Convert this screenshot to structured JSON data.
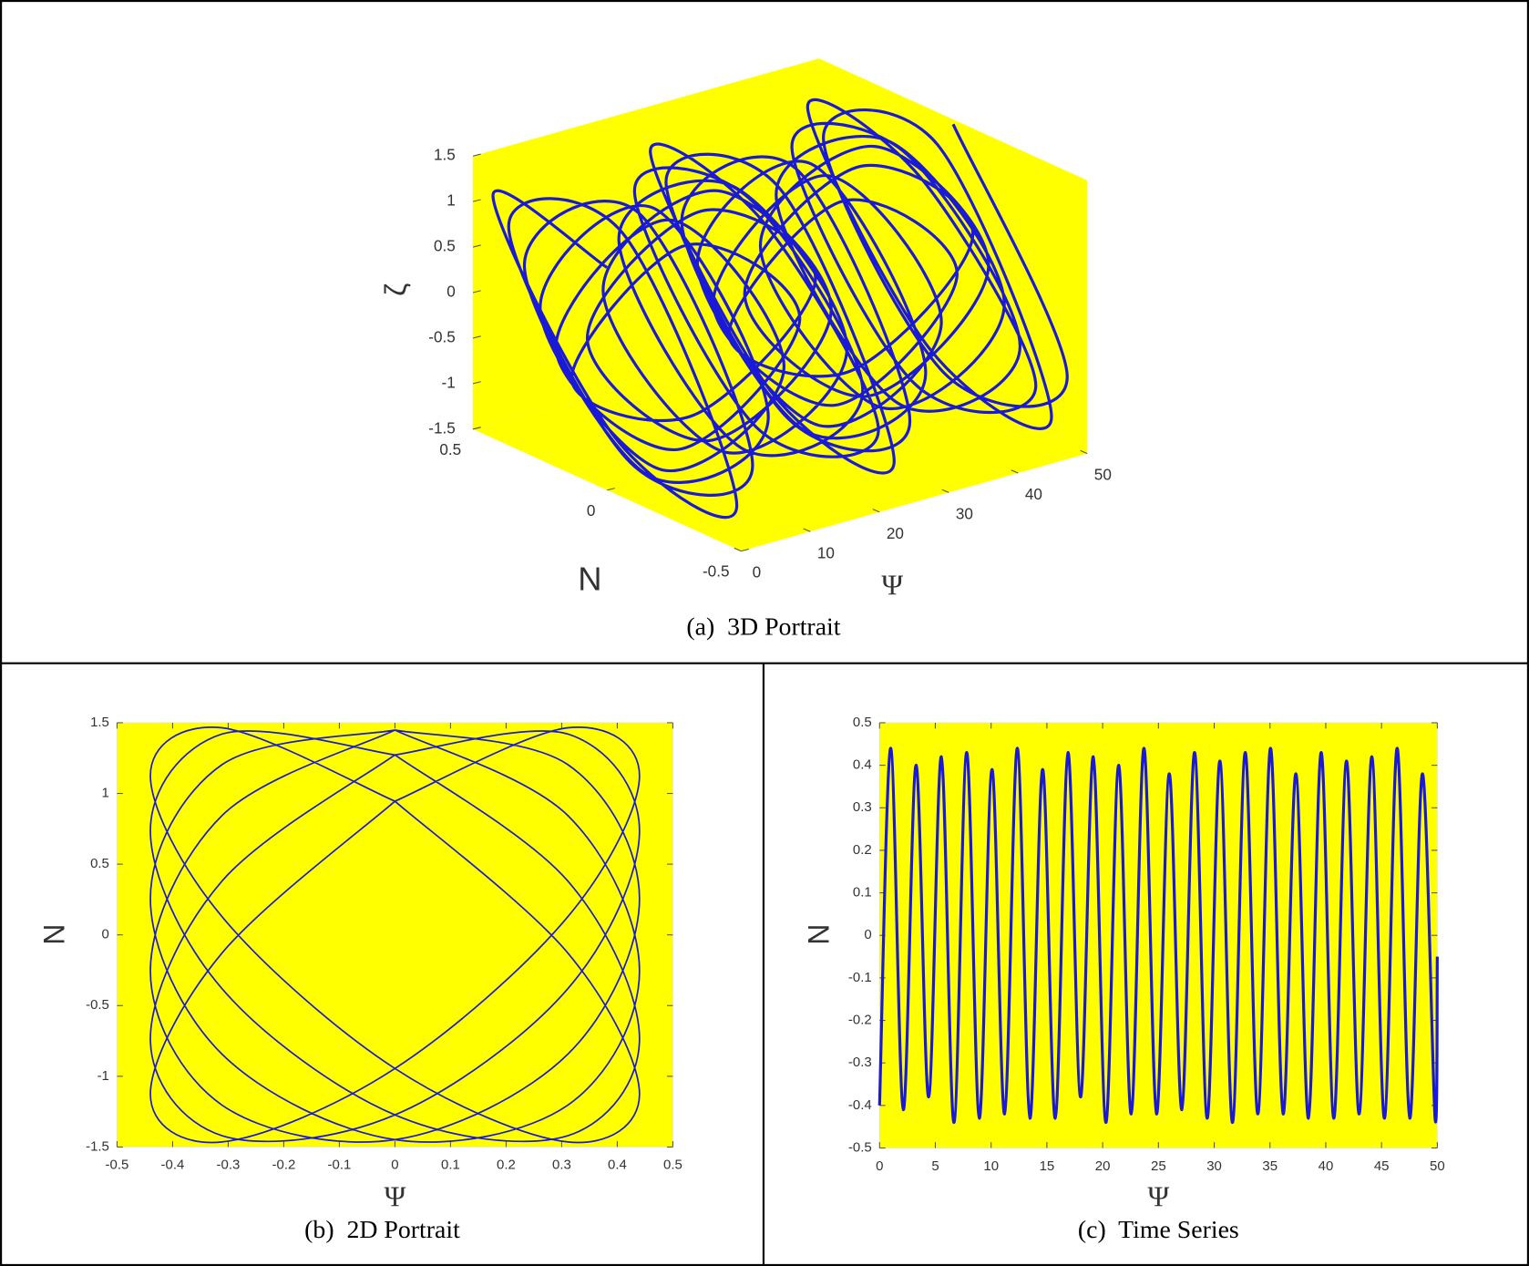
{
  "chart_data": [
    {
      "type": "line3d",
      "caption": "(a)  3D Portrait",
      "xlabel": "Ψ",
      "ylabel": "N",
      "zlabel": "ζ",
      "xlim": [
        0,
        50
      ],
      "ylim": [
        -0.5,
        0.5
      ],
      "zlim": [
        -1.5,
        1.5
      ],
      "xticks": [
        0,
        10,
        20,
        30,
        40,
        50
      ],
      "yticks": [
        -0.5,
        0,
        0.5
      ],
      "zticks": [
        -1.5,
        -1,
        -0.5,
        0,
        0.5,
        1,
        1.5
      ],
      "color": "#1a1ad6",
      "background": "#ffff00",
      "x": [
        0,
        0.57,
        1.14,
        1.7,
        2.27,
        2.84,
        3.41,
        3.98,
        4.55,
        5.11,
        5.68,
        6.25,
        6.82,
        7.39,
        7.95,
        8.52,
        9.09,
        9.66,
        10.23,
        10.8,
        11.36,
        11.93,
        12.5,
        13.07,
        13.64,
        14.2,
        14.77,
        15.34,
        15.91,
        16.48,
        17.05,
        17.61,
        18.18,
        18.75,
        19.32,
        19.89,
        20.45,
        21.02,
        21.59,
        22.16,
        22.73,
        23.3,
        23.86,
        24.43,
        25,
        25.57,
        26.14,
        26.7,
        27.27,
        27.84,
        28.41,
        28.98,
        29.55,
        30.11,
        30.68,
        31.25,
        31.82,
        32.39,
        32.95,
        33.52,
        34.09,
        34.66,
        35.23,
        35.8,
        36.36,
        36.93,
        37.5,
        38.07,
        38.64,
        39.2,
        39.77,
        40.34,
        40.91,
        41.48,
        42.05,
        42.61,
        43.18,
        43.75,
        44.32,
        44.89,
        45.45,
        46.02,
        46.59,
        47.16,
        47.73,
        48.3,
        48.86,
        49.43,
        50
      ],
      "y": [
        0,
        0.44,
        0,
        -0.44,
        0,
        0.44,
        0,
        -0.44,
        0,
        0.44,
        0,
        -0.44,
        0,
        0.44,
        0,
        -0.44,
        0,
        0.44,
        0,
        -0.44,
        0,
        0.44,
        0,
        -0.44,
        0,
        0.44,
        0,
        -0.44,
        0,
        0.44,
        0,
        -0.44,
        0,
        0.44,
        0,
        -0.44,
        0,
        0.44,
        0,
        -0.44,
        0,
        0.44,
        0,
        -0.44,
        0,
        0.44,
        0,
        -0.44,
        0,
        0.44,
        0,
        -0.44,
        0,
        0.44,
        0,
        -0.44,
        0,
        0.44,
        0,
        -0.44,
        0,
        0.44,
        0,
        -0.44,
        0,
        0.44,
        0,
        -0.44,
        0,
        0.44,
        0,
        -0.44,
        0,
        0.44,
        0,
        -0.44,
        0,
        0.44,
        0,
        -0.44,
        0,
        0.44,
        0,
        -0.44,
        0,
        0.44,
        0,
        -0.44,
        0
      ],
      "z": [
        0.945,
        1.126,
        -0.945,
        -1.126,
        1.273,
        0.735,
        -1.273,
        -0.735,
        1.448,
        0.255,
        -1.448,
        -0.255,
        1.448,
        -0.255,
        -1.448,
        0.255,
        1.273,
        -0.735,
        -1.273,
        0.735,
        0.945,
        -1.126,
        -0.945,
        1.126,
        1.273,
        -0.735,
        -1.273,
        0.735,
        1.448,
        -0.255,
        -1.448,
        0.255,
        1.448,
        0.255,
        -1.448,
        -0.255,
        1.273,
        0.735,
        -1.273,
        -0.735,
        0.945,
        1.126,
        -0.945,
        -1.126,
        1.273,
        0.735,
        -1.273,
        -0.735,
        1.448,
        0.255,
        -1.448,
        -0.255,
        1.448,
        -0.255,
        -1.448,
        0.255,
        1.273,
        -0.735,
        -1.273,
        0.735,
        0.945,
        -1.126,
        -0.945,
        1.126,
        1.273,
        -0.735,
        -1.273,
        0.735,
        1.448,
        -0.255,
        -1.448,
        0.255,
        1.448,
        0.255,
        -1.448,
        -0.255,
        1.273,
        0.735,
        -1.273,
        -0.735,
        0.945,
        1.126,
        -0.945,
        -1.126,
        1.273,
        0.735,
        -1.273,
        -0.735,
        1.448
      ]
    },
    {
      "type": "line",
      "caption": "(b)  2D Portrait",
      "xlabel": "Ψ",
      "ylabel": "N",
      "xlim": [
        -0.5,
        0.5
      ],
      "xticks": [
        -0.5,
        -0.4,
        -0.3,
        -0.2,
        -0.1,
        0,
        0.1,
        0.2,
        0.3,
        0.4,
        0.5
      ],
      "ylim": [
        -1.5,
        1.5
      ],
      "yticks": [
        -1.5,
        -1,
        -0.5,
        0,
        0.5,
        1,
        1.5
      ],
      "color": "#1a1ad6",
      "background": "#ffff00",
      "x": [
        0,
        0.311,
        0.44,
        0.311,
        0,
        -0.311,
        -0.44,
        -0.311,
        0,
        null,
        0,
        0.311,
        0.44,
        0.311,
        0,
        -0.311,
        -0.44,
        -0.311,
        0,
        null,
        0,
        0.311,
        0.44,
        0.311,
        0,
        -0.311,
        -0.44,
        -0.311,
        0,
        null,
        0,
        0.311,
        0.44,
        0.311,
        0,
        -0.311,
        -0.44,
        -0.311,
        0,
        null,
        0,
        0.311,
        0.44,
        0.311,
        0,
        -0.311,
        -0.44,
        -0.311,
        0,
        null,
        0,
        0.311,
        0.44,
        0.311,
        0,
        -0.311,
        -0.44,
        -0.311,
        0
      ],
      "y": [
        0.945,
        1.464,
        1.126,
        0.128,
        -0.945,
        -1.464,
        -1.126,
        -0.128,
        0.945,
        null,
        1.273,
        1.42,
        0.735,
        -0.381,
        -1.273,
        -1.42,
        -0.735,
        0.381,
        1.273,
        null,
        1.448,
        1.204,
        0.256,
        -0.844,
        -1.448,
        -1.204,
        -0.256,
        0.844,
        1.448,
        null,
        1.448,
        0.844,
        -0.256,
        -1.204,
        -1.448,
        -0.844,
        0.256,
        1.204,
        1.448,
        null,
        1.273,
        0.381,
        -0.735,
        -1.42,
        -1.273,
        -0.381,
        0.735,
        1.42,
        1.273,
        null,
        0.945,
        -0.128,
        -1.126,
        -1.464,
        -0.945,
        0.128,
        1.126,
        1.464,
        0.945
      ]
    },
    {
      "type": "line",
      "caption": "(c)  Time Series",
      "xlabel": "Ψ",
      "ylabel": "N",
      "xlim": [
        0,
        50
      ],
      "xticks": [
        0,
        5,
        10,
        15,
        20,
        25,
        30,
        35,
        40,
        45,
        50
      ],
      "ylim": [
        -0.5,
        0.5
      ],
      "yticks": [
        -0.5,
        -0.4,
        -0.3,
        -0.2,
        -0.1,
        0,
        0.1,
        0.2,
        0.3,
        0.4,
        0.5
      ],
      "color": "#1a1ad6",
      "background": "#ffff00",
      "x": [
        0,
        1.0,
        2.13,
        3.27,
        4.4,
        5.54,
        6.67,
        7.81,
        8.94,
        10.08,
        11.21,
        12.35,
        13.48,
        14.62,
        15.75,
        16.89,
        18.02,
        19.16,
        20.29,
        21.43,
        22.56,
        23.7,
        24.83,
        25.97,
        27.1,
        28.24,
        29.37,
        30.51,
        31.64,
        32.78,
        33.91,
        35.05,
        36.18,
        37.32,
        38.45,
        39.59,
        40.72,
        41.86,
        42.99,
        44.13,
        45.26,
        46.4,
        47.53,
        48.67,
        49.8,
        50
      ],
      "y": [
        -0.4,
        0.44,
        -0.41,
        0.4,
        -0.38,
        0.42,
        -0.44,
        0.43,
        -0.43,
        0.39,
        -0.42,
        0.44,
        -0.43,
        0.39,
        -0.43,
        0.43,
        -0.38,
        0.42,
        -0.44,
        0.4,
        -0.42,
        0.44,
        -0.42,
        0.38,
        -0.41,
        0.43,
        -0.43,
        0.41,
        -0.44,
        0.43,
        -0.42,
        0.44,
        -0.42,
        0.38,
        -0.43,
        0.43,
        -0.43,
        0.41,
        -0.42,
        0.42,
        -0.43,
        0.44,
        -0.43,
        0.38,
        -0.43,
        -0.05
      ]
    }
  ]
}
